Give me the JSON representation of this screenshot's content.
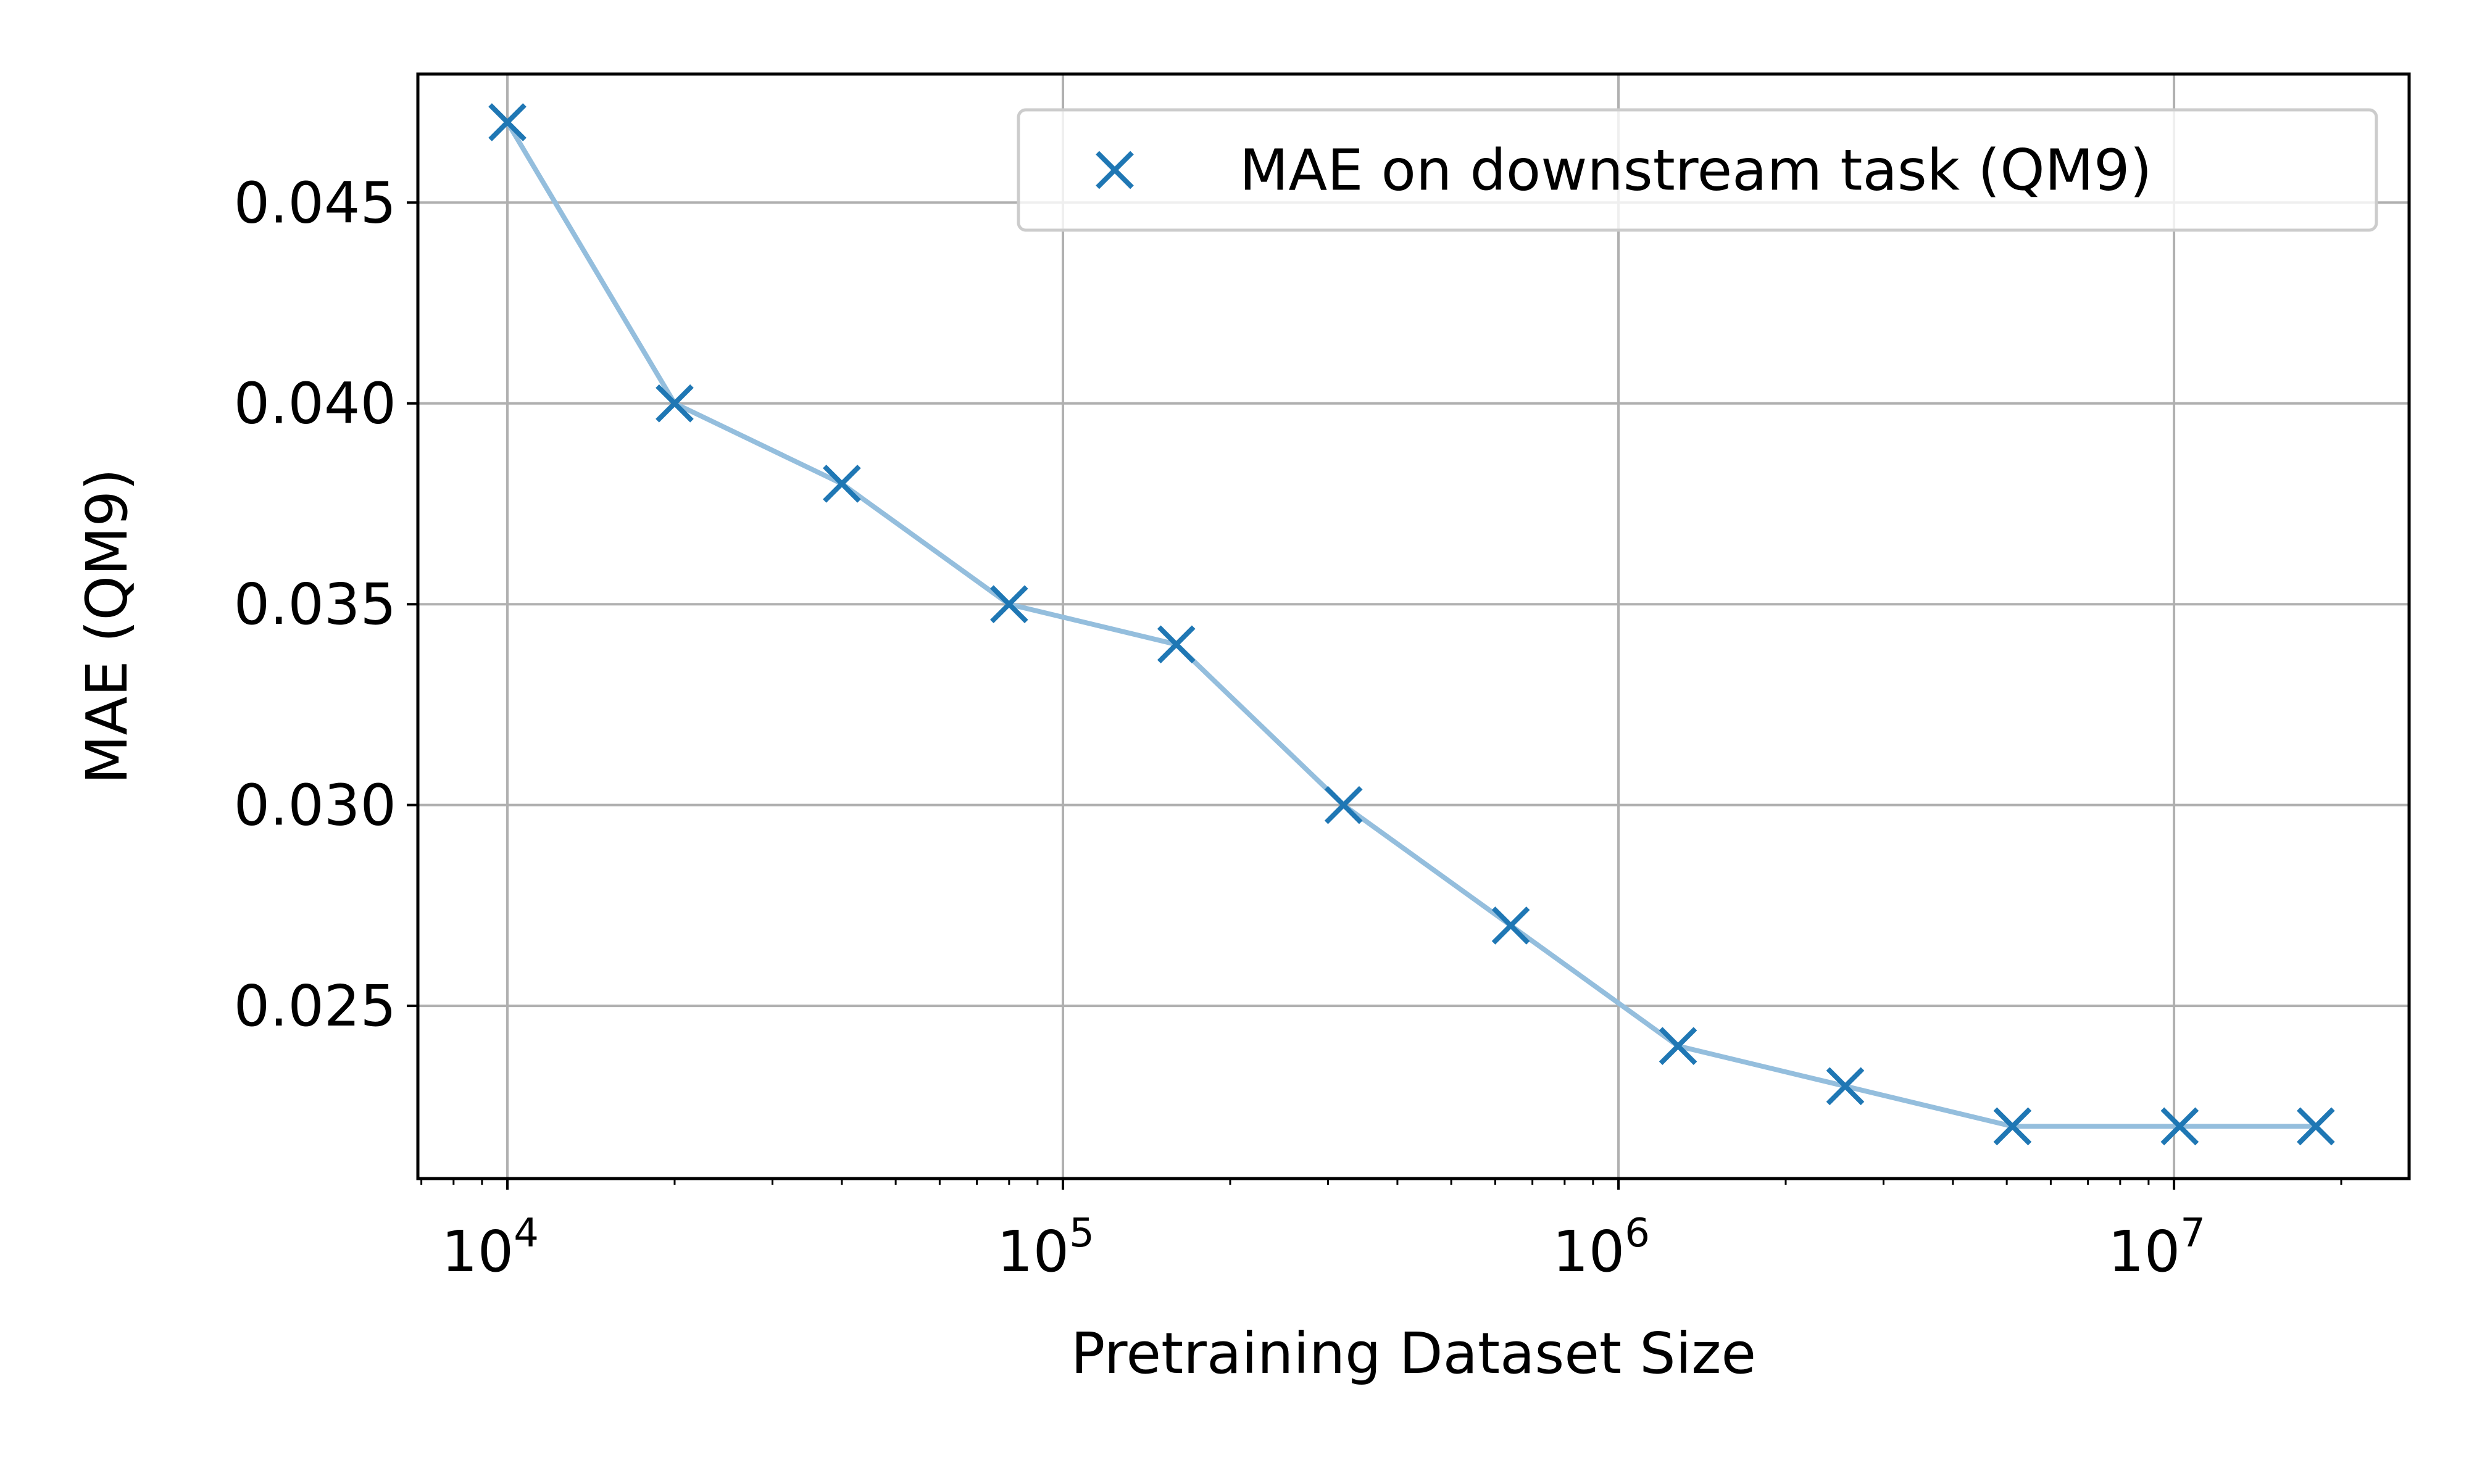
{
  "chart_data": {
    "type": "line",
    "title": "",
    "xlabel": "Pretraining Dataset Size",
    "ylabel": "MAE (QM9)",
    "xscale": "log",
    "xlim": [
      6900,
      26500000
    ],
    "ylim": [
      0.0207,
      0.0482
    ],
    "x_ticks": [
      {
        "value": 10000,
        "base": "10",
        "exp": "4"
      },
      {
        "value": 100000,
        "base": "10",
        "exp": "5"
      },
      {
        "value": 1000000,
        "base": "10",
        "exp": "6"
      },
      {
        "value": 10000000,
        "base": "10",
        "exp": "7"
      }
    ],
    "y_ticks": [
      {
        "value": 0.025,
        "label": "0.025"
      },
      {
        "value": 0.03,
        "label": "0.030"
      },
      {
        "value": 0.035,
        "label": "0.035"
      },
      {
        "value": 0.04,
        "label": "0.040"
      },
      {
        "value": 0.045,
        "label": "0.045"
      }
    ],
    "grid": true,
    "legend_position": "top-right",
    "series": [
      {
        "name": "MAE on downstream task (QM9)",
        "marker": "x",
        "color": "#1f77b4",
        "line_color": "#94bedd",
        "x": [
          10000,
          20000,
          40000,
          80000,
          160000,
          320000,
          640000,
          1280000,
          2560000,
          5120000,
          10240000,
          18000000
        ],
        "y": [
          0.047,
          0.04,
          0.038,
          0.035,
          0.034,
          0.03,
          0.027,
          0.024,
          0.023,
          0.022,
          0.022,
          0.022
        ]
      }
    ]
  }
}
